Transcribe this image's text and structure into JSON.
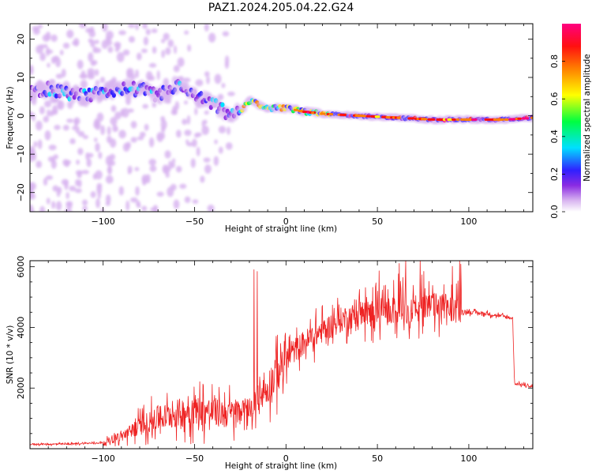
{
  "title": "PAZ1.2024.205.04.22.G24",
  "chart_data": [
    {
      "type": "heatmap",
      "xlabel": "Height of straight line (km)",
      "ylabel": "Frequency (Hz)",
      "xlim": [
        -140,
        135
      ],
      "ylim": [
        -25,
        24
      ],
      "x_ticks": [
        -100,
        -50,
        0,
        50,
        100
      ],
      "y_ticks": [
        -20,
        -10,
        0,
        10,
        20
      ],
      "colorbar": {
        "label": "Normalized spectral amplitude",
        "range": [
          0,
          1
        ],
        "ticks": [
          "0.0",
          "0.2",
          "0.4",
          "0.6",
          "0.8"
        ],
        "colormap": [
          "#ffffff",
          "#d8b4f0",
          "#8a2be2",
          "#3020ff",
          "#00e0ff",
          "#00ff40",
          "#ffff00",
          "#ff8000",
          "#ff1010",
          "#ff0080"
        ]
      },
      "ridge": {
        "x": [
          -140,
          -130,
          -120,
          -110,
          -100,
          -90,
          -80,
          -70,
          -60,
          -50,
          -40,
          -30,
          -25,
          -20,
          -10,
          0,
          10,
          20,
          40,
          60,
          80,
          100,
          120,
          135
        ],
        "freq": [
          6,
          7,
          6,
          5,
          6,
          7,
          7,
          5,
          8,
          5,
          3,
          0,
          1,
          4,
          2,
          2,
          1,
          0.5,
          0,
          -0.5,
          -1,
          -1,
          -1,
          -0.5
        ]
      }
    },
    {
      "type": "line",
      "xlabel": "Height of straight line (km)",
      "ylabel": "SNR (10 * v/v)",
      "xlim": [
        -140,
        135
      ],
      "ylim": [
        0,
        6200
      ],
      "x_ticks": [
        -100,
        -50,
        0,
        50,
        100
      ],
      "y_ticks": [
        2000,
        4000,
        6000
      ],
      "color": "#ee2222",
      "envelope": {
        "x": [
          -140,
          -120,
          -100,
          -90,
          -80,
          -70,
          -60,
          -50,
          -40,
          -30,
          -20,
          -15,
          -10,
          -5,
          0,
          10,
          20,
          30,
          40,
          50,
          60,
          70,
          80,
          90,
          95,
          100,
          110,
          120,
          124,
          125,
          130,
          135
        ],
        "y": [
          150,
          150,
          200,
          400,
          750,
          1000,
          1150,
          1300,
          1200,
          1150,
          1350,
          1700,
          2000,
          2600,
          3000,
          3500,
          3900,
          4250,
          4450,
          4500,
          4550,
          4600,
          4700,
          4650,
          4550,
          4500,
          4450,
          4350,
          4300,
          2150,
          2100,
          2050
        ]
      }
    }
  ]
}
